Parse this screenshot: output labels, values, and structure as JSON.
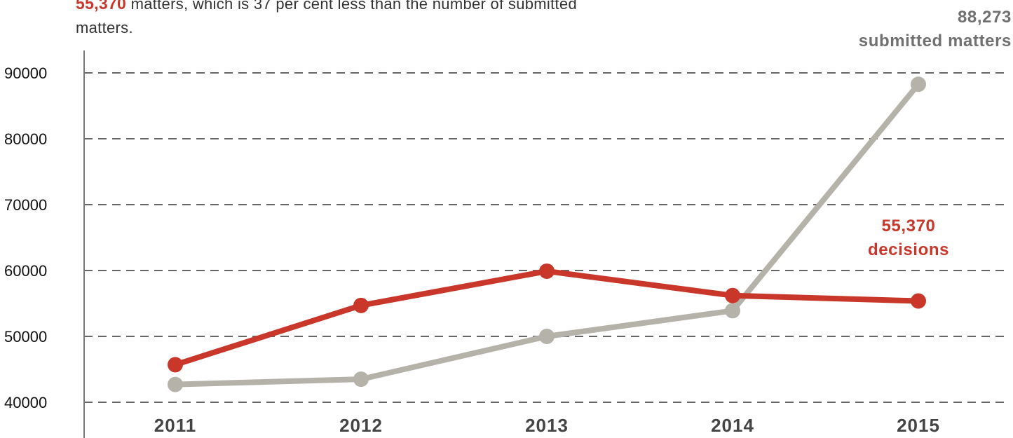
{
  "intro": {
    "highlight": "55,370",
    "text_line1": " matters, which is 37 per cent less than the number of submitted",
    "text_line2": "matters."
  },
  "callouts": {
    "submitted_value": "88,273",
    "submitted_label": "submitted matters",
    "decisions_value": "55,370",
    "decisions_label": "decisions"
  },
  "colors": {
    "decisions": "#c8372a",
    "submitted": "#b5b2aa",
    "grid": "#666666",
    "axis": "#777777"
  },
  "chart_data": {
    "type": "line",
    "categories": [
      "2011",
      "2012",
      "2013",
      "2014",
      "2015"
    ],
    "ylim": [
      40000,
      90000
    ],
    "yticks": [
      "40000",
      "50000",
      "60000",
      "70000",
      "80000",
      "90000"
    ],
    "grid": true,
    "series": [
      {
        "name": "submitted matters",
        "color": "#b5b2aa",
        "values": [
          42700,
          43500,
          50000,
          53900,
          88273
        ]
      },
      {
        "name": "decisions",
        "color": "#c8372a",
        "values": [
          45700,
          54700,
          59900,
          56200,
          55370
        ]
      }
    ]
  }
}
